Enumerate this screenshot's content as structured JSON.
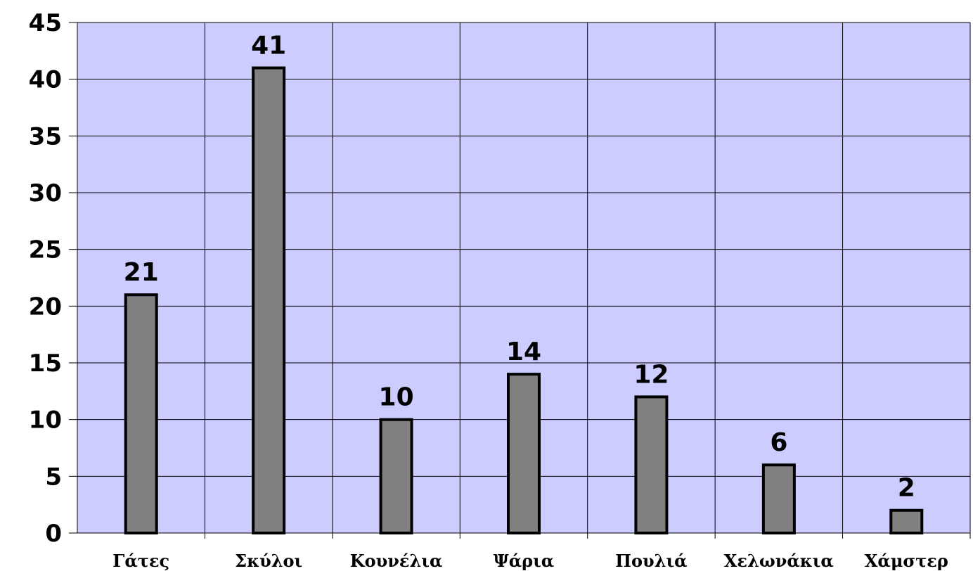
{
  "chart_data": {
    "type": "bar",
    "categories": [
      "Γάτες",
      "Σκύλοι",
      "Κουνέλια",
      "Ψάρια",
      "Πουλιά",
      "Χελωνάκια",
      "Χάμστερ"
    ],
    "values": [
      21,
      41,
      10,
      14,
      12,
      6,
      2
    ],
    "title": "",
    "xlabel": "",
    "ylabel": "",
    "ylim": [
      0,
      45
    ],
    "yticks": [
      "0",
      "5",
      "10",
      "15",
      "20",
      "25",
      "30",
      "35",
      "40",
      "45"
    ],
    "grid": true,
    "legend": "none",
    "data_labels": true
  },
  "colors": {
    "plot_background": "#ccccff",
    "bar_fill": "#808080",
    "bar_stroke": "#000000",
    "grid": "#000000"
  }
}
